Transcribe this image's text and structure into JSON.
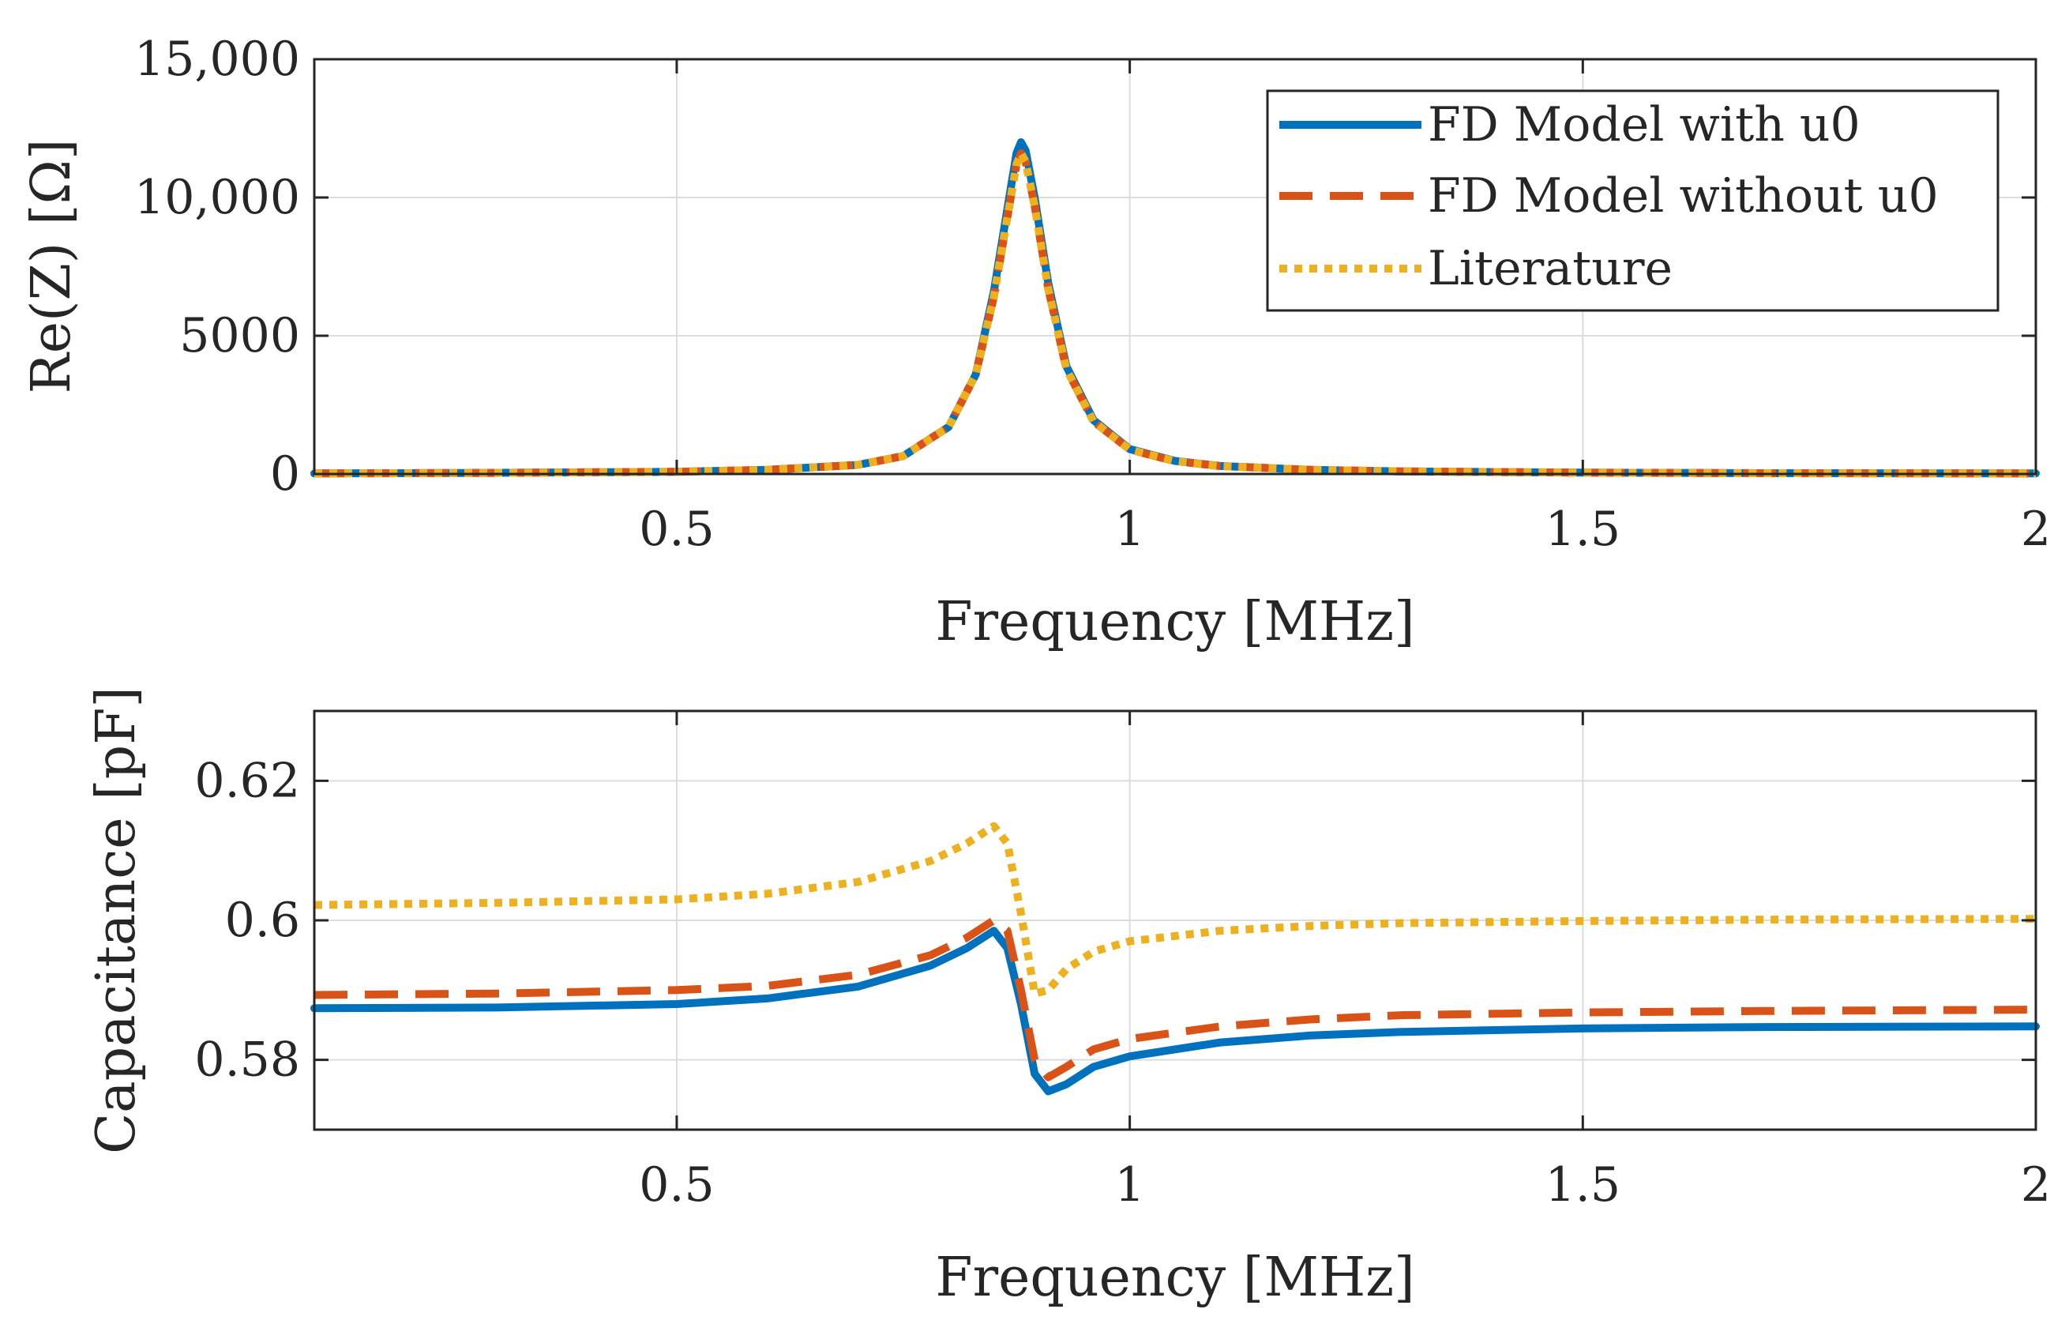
{
  "chart_data": [
    {
      "type": "line",
      "xlabel": "Frequency [MHz]",
      "ylabel": "Re(Z) [Ω]",
      "xlim": [
        0.1,
        2.0
      ],
      "ylim": [
        0,
        15000
      ],
      "xticks": [
        0.5,
        1,
        1.5,
        2
      ],
      "xtick_labels": [
        "0.5",
        "1",
        "1.5",
        "2"
      ],
      "yticks": [
        0,
        5000,
        10000,
        15000
      ],
      "ytick_labels": [
        "0",
        "5000",
        "10,000",
        "15,000"
      ],
      "grid": true,
      "legend_position": "top-right",
      "series": [
        {
          "name": "FD Model with u0",
          "color": "#0072BD",
          "style": "solid",
          "points": [
            [
              0.1,
              20
            ],
            [
              0.3,
              40
            ],
            [
              0.5,
              80
            ],
            [
              0.6,
              150
            ],
            [
              0.7,
              330
            ],
            [
              0.75,
              650
            ],
            [
              0.8,
              1700
            ],
            [
              0.83,
              3600
            ],
            [
              0.85,
              6600
            ],
            [
              0.865,
              9600
            ],
            [
              0.875,
              11600
            ],
            [
              0.88,
              12000
            ],
            [
              0.885,
              11700
            ],
            [
              0.895,
              10000
            ],
            [
              0.91,
              6900
            ],
            [
              0.93,
              3900
            ],
            [
              0.96,
              1950
            ],
            [
              1.0,
              900
            ],
            [
              1.05,
              470
            ],
            [
              1.1,
              290
            ],
            [
              1.2,
              150
            ],
            [
              1.3,
              95
            ],
            [
              1.5,
              50
            ],
            [
              1.7,
              30
            ],
            [
              2.0,
              20
            ]
          ]
        },
        {
          "name": "FD Model without u0",
          "color": "#D95319",
          "style": "dashed",
          "points": [
            [
              0.1,
              20
            ],
            [
              0.3,
              40
            ],
            [
              0.5,
              80
            ],
            [
              0.6,
              150
            ],
            [
              0.7,
              330
            ],
            [
              0.75,
              650
            ],
            [
              0.8,
              1700
            ],
            [
              0.83,
              3600
            ],
            [
              0.85,
              6400
            ],
            [
              0.865,
              9300
            ],
            [
              0.875,
              11200
            ],
            [
              0.88,
              11600
            ],
            [
              0.885,
              11300
            ],
            [
              0.895,
              9700
            ],
            [
              0.91,
              6700
            ],
            [
              0.93,
              3800
            ],
            [
              0.96,
              1900
            ],
            [
              1.0,
              880
            ],
            [
              1.05,
              460
            ],
            [
              1.1,
              285
            ],
            [
              1.2,
              148
            ],
            [
              1.3,
              94
            ],
            [
              1.5,
              50
            ],
            [
              1.7,
              30
            ],
            [
              2.0,
              20
            ]
          ]
        },
        {
          "name": "Literature",
          "color": "#EDB120",
          "style": "dotted",
          "points": [
            [
              0.1,
              20
            ],
            [
              0.3,
              40
            ],
            [
              0.5,
              80
            ],
            [
              0.6,
              150
            ],
            [
              0.7,
              330
            ],
            [
              0.75,
              650
            ],
            [
              0.8,
              1700
            ],
            [
              0.83,
              3600
            ],
            [
              0.85,
              6400
            ],
            [
              0.865,
              9300
            ],
            [
              0.875,
              11200
            ],
            [
              0.88,
              11600
            ],
            [
              0.885,
              11300
            ],
            [
              0.895,
              9700
            ],
            [
              0.91,
              6700
            ],
            [
              0.93,
              3800
            ],
            [
              0.96,
              1900
            ],
            [
              1.0,
              880
            ],
            [
              1.05,
              460
            ],
            [
              1.1,
              285
            ],
            [
              1.2,
              148
            ],
            [
              1.3,
              94
            ],
            [
              1.5,
              50
            ],
            [
              1.7,
              30
            ],
            [
              2.0,
              20
            ]
          ]
        }
      ]
    },
    {
      "type": "line",
      "xlabel": "Frequency [MHz]",
      "ylabel": "Capacitance [pF]",
      "xlim": [
        0.1,
        2.0
      ],
      "ylim": [
        0.57,
        0.63
      ],
      "xticks": [
        0.5,
        1,
        1.5,
        2
      ],
      "xtick_labels": [
        "0.5",
        "1",
        "1.5",
        "2"
      ],
      "yticks": [
        0.58,
        0.6,
        0.62
      ],
      "ytick_labels": [
        "0.58",
        "0.6",
        "0.62"
      ],
      "grid": true,
      "series": [
        {
          "name": "FD Model with u0",
          "color": "#0072BD",
          "style": "solid",
          "points": [
            [
              0.1,
              0.5874
            ],
            [
              0.3,
              0.5875
            ],
            [
              0.5,
              0.588
            ],
            [
              0.6,
              0.5888
            ],
            [
              0.7,
              0.5905
            ],
            [
              0.78,
              0.5935
            ],
            [
              0.82,
              0.596
            ],
            [
              0.85,
              0.5985
            ],
            [
              0.865,
              0.596
            ],
            [
              0.88,
              0.588
            ],
            [
              0.895,
              0.578
            ],
            [
              0.91,
              0.5755
            ],
            [
              0.93,
              0.5765
            ],
            [
              0.96,
              0.579
            ],
            [
              1.0,
              0.5805
            ],
            [
              1.1,
              0.5825
            ],
            [
              1.2,
              0.5835
            ],
            [
              1.3,
              0.584
            ],
            [
              1.5,
              0.5845
            ],
            [
              1.7,
              0.5847
            ],
            [
              2.0,
              0.5848
            ]
          ]
        },
        {
          "name": "FD Model without u0",
          "color": "#D95319",
          "style": "dashed",
          "points": [
            [
              0.1,
              0.5893
            ],
            [
              0.3,
              0.5895
            ],
            [
              0.5,
              0.59
            ],
            [
              0.6,
              0.5906
            ],
            [
              0.7,
              0.5922
            ],
            [
              0.78,
              0.595
            ],
            [
              0.82,
              0.5975
            ],
            [
              0.85,
              0.6
            ],
            [
              0.865,
              0.5985
            ],
            [
              0.88,
              0.59
            ],
            [
              0.895,
              0.58
            ],
            [
              0.91,
              0.5775
            ],
            [
              0.93,
              0.579
            ],
            [
              0.96,
              0.5815
            ],
            [
              1.0,
              0.583
            ],
            [
              1.1,
              0.5848
            ],
            [
              1.2,
              0.5858
            ],
            [
              1.3,
              0.5864
            ],
            [
              1.5,
              0.5868
            ],
            [
              1.7,
              0.587
            ],
            [
              2.0,
              0.5872
            ]
          ]
        },
        {
          "name": "Literature",
          "color": "#EDB120",
          "style": "dotted",
          "points": [
            [
              0.1,
              0.6022
            ],
            [
              0.3,
              0.6025
            ],
            [
              0.5,
              0.603
            ],
            [
              0.6,
              0.6038
            ],
            [
              0.7,
              0.6055
            ],
            [
              0.78,
              0.6085
            ],
            [
              0.82,
              0.611
            ],
            [
              0.85,
              0.6135
            ],
            [
              0.865,
              0.611
            ],
            [
              0.88,
              0.601
            ],
            [
              0.895,
              0.5895
            ],
            [
              0.91,
              0.59
            ],
            [
              0.93,
              0.593
            ],
            [
              0.96,
              0.5955
            ],
            [
              1.0,
              0.597
            ],
            [
              1.1,
              0.5985
            ],
            [
              1.2,
              0.5992
            ],
            [
              1.3,
              0.5996
            ],
            [
              1.5,
              0.5999
            ],
            [
              1.7,
              0.6001
            ],
            [
              2.0,
              0.6002
            ]
          ]
        }
      ]
    }
  ]
}
